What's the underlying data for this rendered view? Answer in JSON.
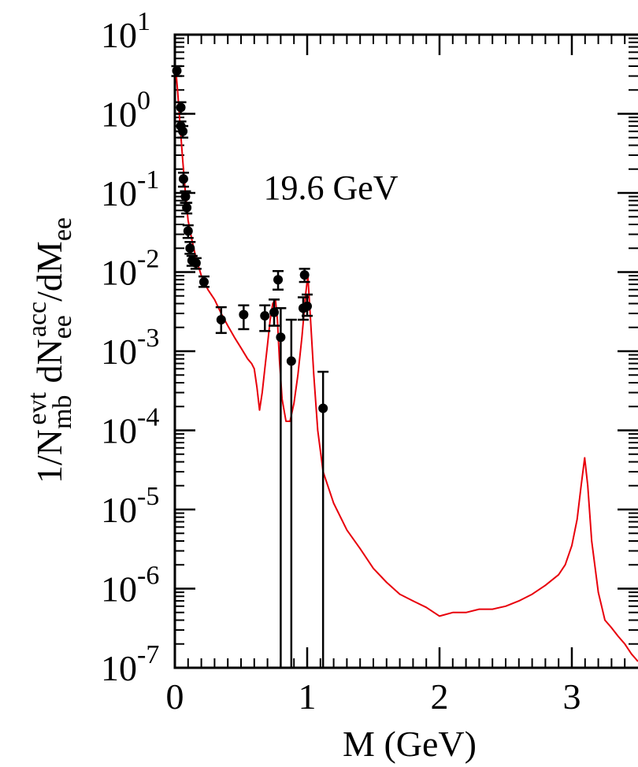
{
  "chart_data": {
    "type": "scatter",
    "annotation": "19.6 GeV",
    "xlabel": "M (GeV)",
    "ylabel": "1/N_mb^evt dN_ee^acc/dM_ee",
    "ylabel_parts": {
      "prefix": "1/N",
      "sub1": "mb",
      "sup1": "evt",
      "mid": " dN",
      "sub2": "ee",
      "sup2": "acc",
      "suffix": "/dM",
      "sub3": "ee"
    },
    "xlim": [
      0,
      3.5
    ],
    "ylim": [
      1e-07,
      10
    ],
    "y_scale": "log",
    "x_ticks": [
      0,
      1,
      2,
      3
    ],
    "x_tick_labels": [
      "0",
      "1",
      "2",
      "3"
    ],
    "y_ticks": [
      {
        "value": 10,
        "base": "10",
        "exp": "1"
      },
      {
        "value": 1,
        "base": "10",
        "exp": "0"
      },
      {
        "value": 0.1,
        "base": "10",
        "exp": "-1"
      },
      {
        "value": 0.01,
        "base": "10",
        "exp": "-2"
      },
      {
        "value": 0.001,
        "base": "10",
        "exp": "-3"
      },
      {
        "value": 0.0001,
        "base": "10",
        "exp": "-4"
      },
      {
        "value": 1e-05,
        "base": "10",
        "exp": "-5"
      },
      {
        "value": 1e-06,
        "base": "10",
        "exp": "-6"
      },
      {
        "value": 1e-07,
        "base": "10",
        "exp": "-7"
      }
    ],
    "grid": false,
    "legend": "none",
    "series": [
      {
        "type": "line",
        "color": "#e8000b",
        "x": [
          0.005,
          0.02,
          0.04,
          0.06,
          0.08,
          0.1,
          0.13,
          0.16,
          0.2,
          0.25,
          0.3,
          0.35,
          0.4,
          0.45,
          0.5,
          0.55,
          0.58,
          0.6,
          0.62,
          0.64,
          0.66,
          0.68,
          0.7,
          0.72,
          0.74,
          0.76,
          0.775,
          0.79,
          0.81,
          0.84,
          0.87,
          0.9,
          0.93,
          0.96,
          0.99,
          1.005,
          1.02,
          1.05,
          1.08,
          1.12,
          1.2,
          1.3,
          1.4,
          1.5,
          1.6,
          1.7,
          1.8,
          1.9,
          2.0,
          2.1,
          2.2,
          2.3,
          2.4,
          2.5,
          2.6,
          2.7,
          2.8,
          2.9,
          2.95,
          3.0,
          3.04,
          3.07,
          3.097,
          3.12,
          3.15,
          3.2,
          3.25,
          3.3,
          3.35,
          3.4,
          3.45,
          3.5
        ],
        "y": [
          4.0,
          2.0,
          0.7,
          0.25,
          0.1,
          0.045,
          0.025,
          0.015,
          0.009,
          0.006,
          0.0045,
          0.003,
          0.0021,
          0.0015,
          0.0011,
          0.0008,
          0.0007,
          0.0006,
          0.00035,
          0.00018,
          0.0003,
          0.0006,
          0.0012,
          0.0025,
          0.004,
          0.0045,
          0.0025,
          0.0008,
          0.00025,
          0.00013,
          0.00013,
          0.00022,
          0.0005,
          0.0015,
          0.0055,
          0.009,
          0.0035,
          0.0005,
          0.0001,
          3e-05,
          1.2e-05,
          5.5e-06,
          3.2e-06,
          1.8e-06,
          1.2e-06,
          8.5e-07,
          7e-07,
          5.8e-07,
          4.5e-07,
          5e-07,
          5e-07,
          5.5e-07,
          5.5e-07,
          6e-07,
          7e-07,
          8.5e-07,
          1.1e-06,
          1.5e-06,
          2e-06,
          3.5e-06,
          7.5e-06,
          2e-05,
          4.5e-05,
          2e-05,
          4e-06,
          9e-07,
          4e-07,
          3.2e-07,
          2.5e-07,
          2e-07,
          1.5e-07,
          1.2e-07
        ]
      },
      {
        "type": "points",
        "color": "#000000",
        "points": [
          {
            "x": 0.015,
            "y": 3.5,
            "ylo": 3.0,
            "yhi": 4.0
          },
          {
            "x": 0.045,
            "y": 1.2,
            "ylo": 1.0,
            "yhi": 1.4
          },
          {
            "x": 0.045,
            "y": 0.7,
            "ylo": 0.6,
            "yhi": 0.8
          },
          {
            "x": 0.06,
            "y": 0.6,
            "ylo": 0.5,
            "yhi": 0.7
          },
          {
            "x": 0.065,
            "y": 0.15,
            "ylo": 0.12,
            "yhi": 0.18
          },
          {
            "x": 0.08,
            "y": 0.09,
            "ylo": 0.075,
            "yhi": 0.105
          },
          {
            "x": 0.09,
            "y": 0.065,
            "ylo": 0.055,
            "yhi": 0.075
          },
          {
            "x": 0.1,
            "y": 0.033,
            "ylo": 0.027,
            "yhi": 0.039
          },
          {
            "x": 0.115,
            "y": 0.02,
            "ylo": 0.017,
            "yhi": 0.024
          },
          {
            "x": 0.13,
            "y": 0.014,
            "ylo": 0.012,
            "yhi": 0.016
          },
          {
            "x": 0.16,
            "y": 0.013,
            "ylo": 0.011,
            "yhi": 0.015
          },
          {
            "x": 0.22,
            "y": 0.0075,
            "ylo": 0.0065,
            "yhi": 0.0088
          },
          {
            "x": 0.35,
            "y": 0.0025,
            "ylo": 0.0017,
            "yhi": 0.0036
          },
          {
            "x": 0.52,
            "y": 0.0029,
            "ylo": 0.0019,
            "yhi": 0.0038
          },
          {
            "x": 0.68,
            "y": 0.0028,
            "ylo": 0.0018,
            "yhi": 0.0038
          },
          {
            "x": 0.75,
            "y": 0.0031,
            "ylo": 0.0021,
            "yhi": 0.0045
          },
          {
            "x": 0.78,
            "y": 0.008,
            "ylo": 0.006,
            "yhi": 0.0103
          },
          {
            "x": 0.8,
            "y": 0.0015,
            "ylo": 1e-07,
            "yhi": 0.0035
          },
          {
            "x": 0.88,
            "y": 0.00075,
            "ylo": 1e-07,
            "yhi": 0.0025
          },
          {
            "x": 0.97,
            "y": 0.0035,
            "ylo": 0.0025,
            "yhi": 0.0048
          },
          {
            "x": 0.98,
            "y": 0.0092,
            "ylo": 0.0075,
            "yhi": 0.011
          },
          {
            "x": 1.0,
            "y": 0.0037,
            "ylo": 0.0028,
            "yhi": 0.0052
          },
          {
            "x": 1.12,
            "y": 0.00019,
            "ylo": 1e-07,
            "yhi": 0.00055
          }
        ]
      }
    ]
  }
}
